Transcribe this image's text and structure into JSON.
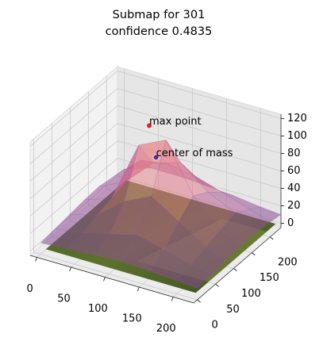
{
  "chart_data": {
    "type": "surface3d",
    "title": "Submap for 301",
    "subtitle": "confidence 0.4835",
    "xlim": [
      -10,
      230
    ],
    "ylim": [
      -10,
      230
    ],
    "zlim": [
      -5,
      125
    ],
    "xticks": [
      0,
      50,
      100,
      150,
      200
    ],
    "yticks": [
      0,
      50,
      100,
      150,
      200
    ],
    "zticks": [
      0,
      20,
      40,
      60,
      80,
      100,
      120
    ],
    "grid": true,
    "colormap": [
      "#6a3d9a",
      "#e0708a",
      "#fbd7a0"
    ],
    "surface": {
      "x": [
        0,
        40,
        80,
        120,
        160,
        200,
        230
      ],
      "y": [
        0,
        40,
        80,
        120,
        160,
        200,
        230
      ],
      "z": [
        [
          8,
          10,
          12,
          14,
          12,
          10,
          8
        ],
        [
          10,
          14,
          22,
          30,
          22,
          14,
          10
        ],
        [
          12,
          20,
          45,
          60,
          40,
          20,
          12
        ],
        [
          14,
          25,
          95,
          110,
          55,
          25,
          14
        ],
        [
          15,
          30,
          60,
          70,
          45,
          30,
          15
        ],
        [
          12,
          40,
          45,
          40,
          30,
          20,
          12
        ],
        [
          10,
          20,
          20,
          18,
          16,
          12,
          10
        ]
      ]
    },
    "annotations": [
      {
        "text": "max point",
        "x": 90,
        "y": 130,
        "z": 116,
        "color": "#e8211a"
      },
      {
        "text": "center of mass",
        "x": 100,
        "y": 130,
        "z": 82,
        "color": "#5a2a8a"
      }
    ]
  }
}
